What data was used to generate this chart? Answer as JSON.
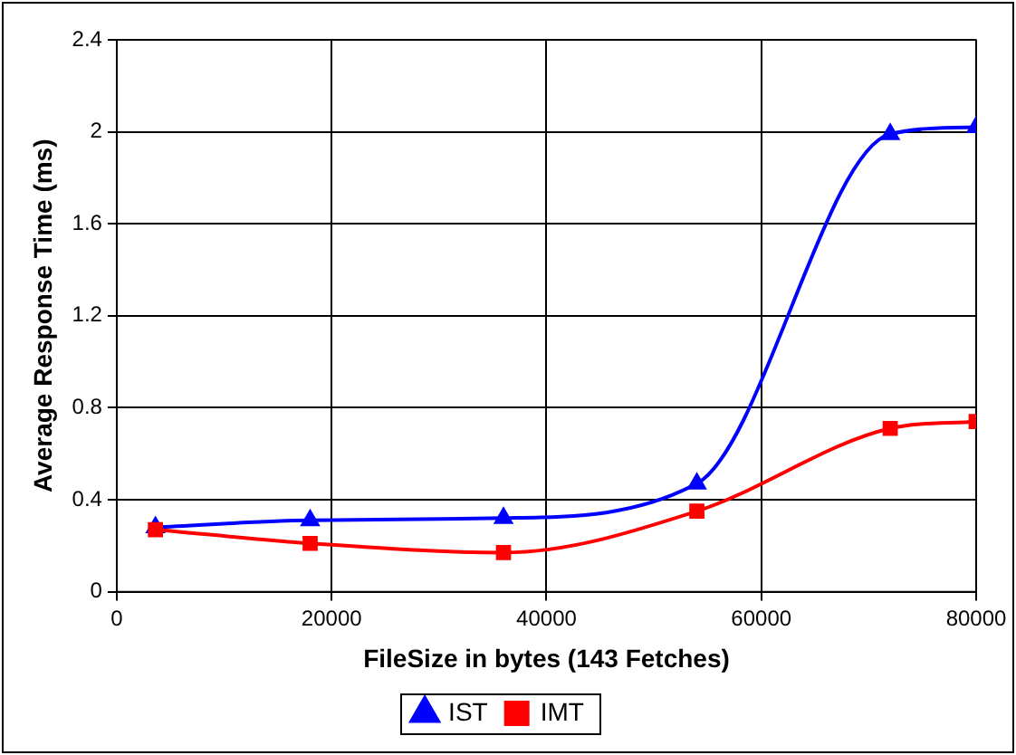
{
  "chart_data": {
    "type": "line",
    "xlabel": "FileSize in bytes (143 Fetches)",
    "ylabel": "Average Response Time (ms)",
    "x": [
      3600,
      18000,
      36000,
      54000,
      72000,
      80000
    ],
    "series": [
      {
        "name": "IST",
        "color": "#0000ff",
        "marker": "triangle",
        "values": [
          0.28,
          0.31,
          0.32,
          0.47,
          1.99,
          2.02
        ]
      },
      {
        "name": "IMT",
        "color": "#ff0000",
        "marker": "square",
        "values": [
          0.27,
          0.21,
          0.17,
          0.35,
          0.71,
          0.74
        ]
      }
    ],
    "xlim": [
      0,
      80000
    ],
    "xticks": [
      0,
      20000,
      40000,
      60000,
      80000
    ],
    "ylim": [
      0,
      2.4
    ],
    "yticks": [
      0,
      0.4,
      0.8,
      1.2,
      1.6,
      2,
      2.4
    ],
    "grid": true,
    "legend": "bottom",
    "line_style": "solid"
  }
}
